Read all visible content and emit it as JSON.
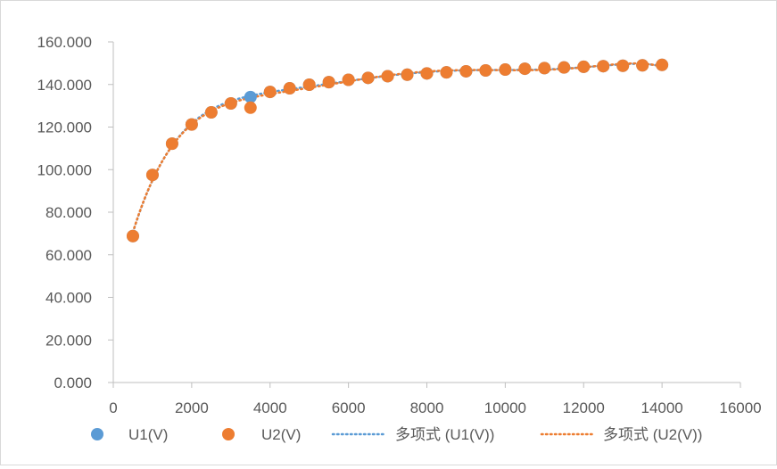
{
  "chart_data": {
    "type": "scatter",
    "title": "",
    "xlabel": "",
    "ylabel": "",
    "xlim": [
      0,
      16000
    ],
    "ylim": [
      0,
      160
    ],
    "x_ticks": [
      0,
      2000,
      4000,
      6000,
      8000,
      10000,
      12000,
      14000,
      16000
    ],
    "x_tick_labels": [
      "0",
      "2000",
      "4000",
      "6000",
      "8000",
      "10000",
      "12000",
      "14000",
      "16000"
    ],
    "y_ticks": [
      0,
      20,
      40,
      60,
      80,
      100,
      120,
      140,
      160
    ],
    "y_tick_labels": [
      "0.000",
      "20.000",
      "40.000",
      "60.000",
      "80.000",
      "100.000",
      "120.000",
      "140.000",
      "160.000"
    ],
    "grid": false,
    "legend_position": "bottom",
    "series": [
      {
        "name": "U1(V)",
        "color": "#5b9bd5",
        "marker": "circle",
        "x": [
          500,
          1000,
          1500,
          2000,
          2500,
          3000,
          3500,
          4000,
          4500,
          5000,
          5500,
          6000,
          6500,
          7000,
          7500,
          8000,
          8500,
          9000,
          9500,
          10000,
          10500,
          11000,
          11500,
          12000,
          12500,
          13000,
          13500,
          14000
        ],
        "y": [
          68.8,
          97.5,
          112.2,
          121.2,
          126.9,
          131.1,
          134.1,
          136.5,
          138.2,
          139.9,
          141.1,
          142.2,
          143.1,
          143.9,
          144.6,
          145.2,
          145.7,
          146.2,
          146.6,
          147.0,
          147.4,
          147.7,
          148.0,
          148.3,
          148.6,
          148.8,
          149.0,
          149.2
        ]
      },
      {
        "name": "U2(V)",
        "color": "#ed7d31",
        "marker": "circle",
        "x": [
          500,
          1000,
          1500,
          2000,
          2500,
          3000,
          3500,
          4000,
          4500,
          5000,
          5500,
          6000,
          6500,
          7000,
          7500,
          8000,
          8500,
          9000,
          9500,
          10000,
          10500,
          11000,
          11500,
          12000,
          12500,
          13000,
          13500,
          14000
        ],
        "y": [
          68.8,
          97.5,
          112.2,
          121.2,
          126.9,
          131.1,
          129.1,
          136.5,
          138.2,
          139.9,
          141.1,
          142.2,
          143.1,
          143.9,
          144.6,
          145.2,
          145.7,
          146.2,
          146.6,
          147.0,
          147.4,
          147.7,
          148.0,
          148.3,
          148.6,
          148.8,
          149.0,
          149.2
        ]
      }
    ],
    "trendlines": [
      {
        "name": "多项式 (U1(V))",
        "type": "polynomial",
        "color": "#5b9bd5",
        "style": "dotted",
        "series_index": 0
      },
      {
        "name": "多项式 (U2(V))",
        "type": "polynomial",
        "color": "#ed7d31",
        "style": "dotted",
        "series_index": 1
      }
    ],
    "axis_color": "#bfbfbf"
  }
}
